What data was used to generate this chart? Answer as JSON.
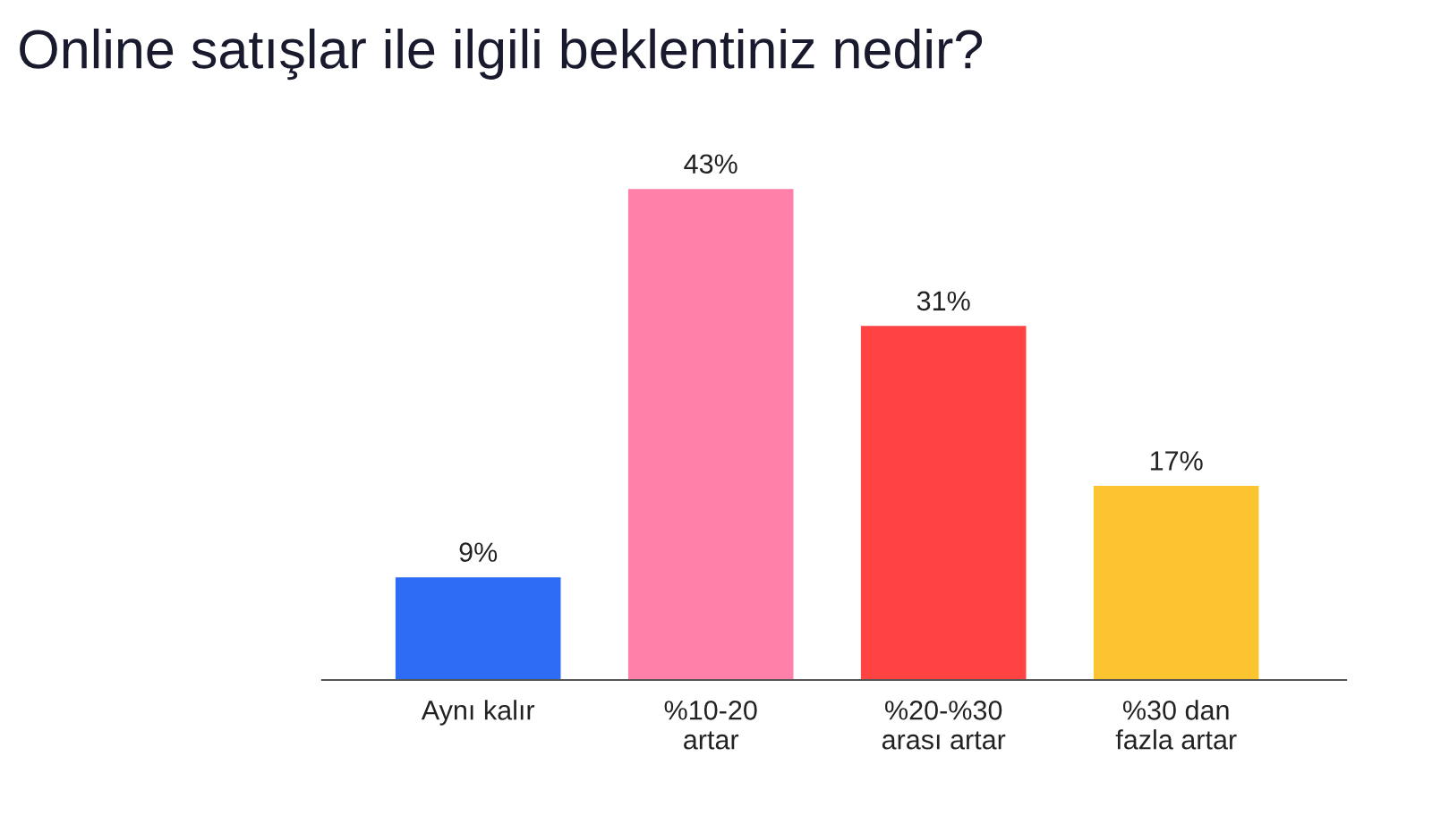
{
  "chart_data": {
    "type": "bar",
    "title": "Online satışlar ile ilgili beklentiniz nedir?",
    "categories": [
      "Aynı kalır",
      "%10-20\nartar",
      "%20-%30\narası artar",
      "%30 dan\nfazla artar"
    ],
    "values": [
      9,
      43,
      31,
      17
    ],
    "value_labels": [
      "9%",
      "43%",
      "31%",
      "17%"
    ],
    "colors": [
      "#2f6cf5",
      "#ff80a8",
      "#ff4242",
      "#fdc431"
    ],
    "grid": false,
    "legend": false
  }
}
